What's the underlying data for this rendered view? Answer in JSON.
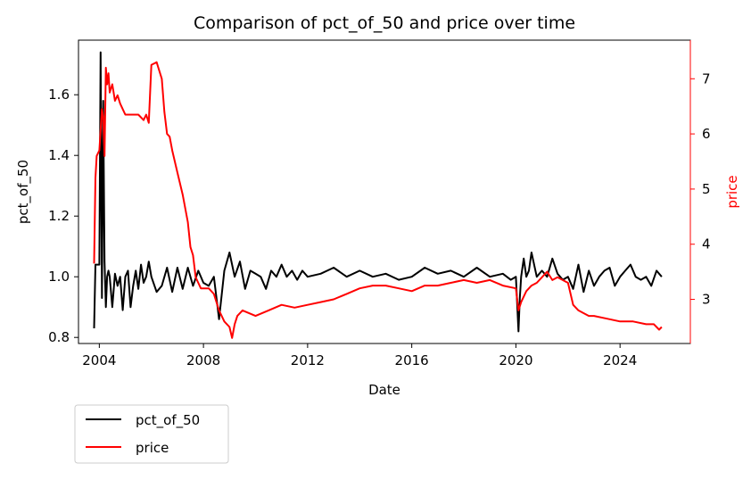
{
  "chart_data": {
    "type": "line",
    "title": "Comparison of pct_of_50 and price over time",
    "xlabel": "Date",
    "ylabel_left": "pct_of_50",
    "ylabel_right": "price",
    "xlim": [
      2003.2,
      2026.7
    ],
    "ylim_left": [
      0.78,
      1.78
    ],
    "ylim_right": [
      2.2,
      7.7
    ],
    "x_ticks": [
      2004,
      2008,
      2012,
      2016,
      2020,
      2024
    ],
    "y_ticks_left": [
      0.8,
      1.0,
      1.2,
      1.4,
      1.6
    ],
    "y_ticks_right": [
      3,
      4,
      5,
      6,
      7
    ],
    "grid": false,
    "legend_position": "below-left",
    "series": [
      {
        "name": "pct_of_50",
        "axis": "left",
        "color": "#000000",
        "x": [
          2003.8,
          2003.85,
          2003.9,
          2004.0,
          2004.05,
          2004.1,
          2004.15,
          2004.2,
          2004.25,
          2004.3,
          2004.35,
          2004.4,
          2004.5,
          2004.6,
          2004.7,
          2004.8,
          2004.9,
          2005.0,
          2005.1,
          2005.2,
          2005.3,
          2005.4,
          2005.5,
          2005.6,
          2005.7,
          2005.8,
          2005.9,
          2006.0,
          2006.2,
          2006.4,
          2006.6,
          2006.8,
          2007.0,
          2007.2,
          2007.4,
          2007.6,
          2007.8,
          2008.0,
          2008.2,
          2008.4,
          2008.6,
          2008.8,
          2009.0,
          2009.2,
          2009.4,
          2009.6,
          2009.8,
          2010.0,
          2010.2,
          2010.4,
          2010.6,
          2010.8,
          2011.0,
          2011.2,
          2011.4,
          2011.6,
          2011.8,
          2012.0,
          2012.5,
          2013.0,
          2013.5,
          2014.0,
          2014.5,
          2015.0,
          2015.5,
          2016.0,
          2016.5,
          2017.0,
          2017.5,
          2018.0,
          2018.5,
          2019.0,
          2019.5,
          2019.8,
          2020.0,
          2020.1,
          2020.15,
          2020.2,
          2020.3,
          2020.4,
          2020.5,
          2020.6,
          2020.8,
          2021.0,
          2021.2,
          2021.4,
          2021.6,
          2021.8,
          2022.0,
          2022.2,
          2022.4,
          2022.6,
          2022.8,
          2023.0,
          2023.2,
          2023.4,
          2023.6,
          2023.8,
          2024.0,
          2024.2,
          2024.4,
          2024.6,
          2024.8,
          2025.0,
          2025.2,
          2025.4,
          2025.6
        ],
        "y": [
          0.83,
          1.04,
          1.04,
          1.04,
          1.74,
          0.93,
          1.58,
          1.05,
          0.9,
          1.0,
          1.02,
          1.0,
          0.9,
          1.01,
          0.97,
          1.0,
          0.89,
          1.0,
          1.02,
          0.9,
          0.97,
          1.02,
          0.96,
          1.04,
          0.98,
          1.0,
          1.05,
          1.0,
          0.95,
          0.97,
          1.03,
          0.95,
          1.03,
          0.96,
          1.03,
          0.97,
          1.02,
          0.98,
          0.97,
          1.0,
          0.86,
          1.02,
          1.08,
          1.0,
          1.05,
          0.96,
          1.02,
          1.01,
          1.0,
          0.96,
          1.02,
          1.0,
          1.04,
          1.0,
          1.02,
          0.99,
          1.02,
          1.0,
          1.01,
          1.03,
          1.0,
          1.02,
          1.0,
          1.01,
          0.99,
          1.0,
          1.03,
          1.01,
          1.02,
          1.0,
          1.03,
          1.0,
          1.01,
          0.99,
          1.0,
          0.82,
          0.93,
          1.0,
          1.06,
          1.0,
          1.02,
          1.08,
          1.0,
          1.02,
          1.0,
          1.06,
          1.01,
          0.99,
          1.0,
          0.96,
          1.04,
          0.95,
          1.02,
          0.97,
          1.0,
          1.02,
          1.03,
          0.97,
          1.0,
          1.02,
          1.04,
          1.0,
          0.99,
          1.0,
          0.97,
          1.02,
          1.0
        ]
      },
      {
        "name": "price",
        "axis": "right",
        "color": "#ff0000",
        "x": [
          2003.8,
          2003.85,
          2003.9,
          2004.0,
          2004.1,
          2004.15,
          2004.2,
          2004.25,
          2004.3,
          2004.35,
          2004.4,
          2004.5,
          2004.6,
          2004.7,
          2004.8,
          2004.9,
          2005.0,
          2005.5,
          2005.7,
          2005.8,
          2005.9,
          2006.0,
          2006.2,
          2006.4,
          2006.5,
          2006.6,
          2006.7,
          2006.8,
          2007.0,
          2007.2,
          2007.4,
          2007.5,
          2007.6,
          2007.7,
          2007.8,
          2007.9,
          2008.0,
          2008.2,
          2008.4,
          2008.6,
          2008.8,
          2009.0,
          2009.1,
          2009.2,
          2009.3,
          2009.5,
          2010.0,
          2010.5,
          2011.0,
          2011.5,
          2012.0,
          2012.5,
          2013.0,
          2013.5,
          2014.0,
          2014.5,
          2015.0,
          2015.5,
          2016.0,
          2016.5,
          2017.0,
          2017.5,
          2018.0,
          2018.5,
          2019.0,
          2019.5,
          2020.0,
          2020.1,
          2020.2,
          2020.4,
          2020.6,
          2020.8,
          2021.0,
          2021.2,
          2021.4,
          2021.6,
          2022.0,
          2022.2,
          2022.4,
          2022.6,
          2022.8,
          2023.0,
          2023.5,
          2024.0,
          2024.5,
          2025.0,
          2025.3,
          2025.5,
          2025.6
        ],
        "y": [
          3.65,
          5.2,
          5.6,
          5.7,
          6.45,
          6.3,
          5.6,
          7.2,
          6.9,
          7.1,
          6.75,
          6.9,
          6.6,
          6.7,
          6.55,
          6.45,
          6.35,
          6.35,
          6.25,
          6.35,
          6.2,
          7.25,
          7.3,
          7.0,
          6.4,
          6.0,
          5.95,
          5.7,
          5.3,
          4.9,
          4.4,
          3.95,
          3.8,
          3.4,
          3.3,
          3.2,
          3.2,
          3.2,
          3.1,
          2.8,
          2.6,
          2.5,
          2.3,
          2.55,
          2.7,
          2.8,
          2.7,
          2.8,
          2.9,
          2.85,
          2.9,
          2.95,
          3.0,
          3.1,
          3.2,
          3.25,
          3.25,
          3.2,
          3.15,
          3.25,
          3.25,
          3.3,
          3.35,
          3.3,
          3.35,
          3.25,
          3.2,
          2.8,
          2.95,
          3.15,
          3.25,
          3.3,
          3.4,
          3.5,
          3.35,
          3.4,
          3.3,
          2.9,
          2.8,
          2.75,
          2.7,
          2.7,
          2.65,
          2.6,
          2.6,
          2.55,
          2.55,
          2.45,
          2.5
        ]
      }
    ]
  }
}
